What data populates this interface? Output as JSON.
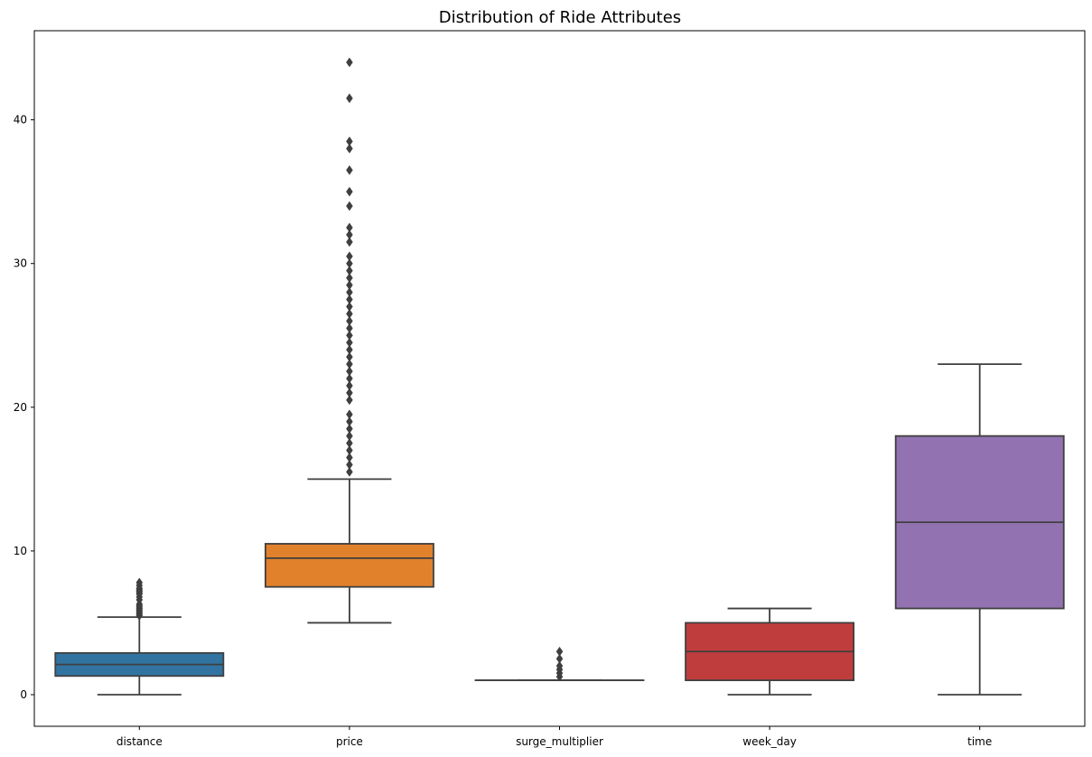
{
  "chart_data": {
    "type": "box",
    "title": "Distribution of Ride Attributes",
    "xlabel": "",
    "ylabel": "",
    "ylim": [
      -2.2,
      46.2
    ],
    "yticks": [
      0,
      10,
      20,
      30,
      40
    ],
    "grid": false,
    "legend": "none",
    "categories": [
      "distance",
      "price",
      "surge_multiplier",
      "week_day",
      "time"
    ],
    "boxes": [
      {
        "category": "distance",
        "color": "#3274a1",
        "q1": 1.3,
        "median": 2.1,
        "q3": 2.9,
        "whisker_low": 0.0,
        "whisker_high": 5.4,
        "outliers": [
          5.5,
          5.6,
          5.7,
          5.8,
          5.9,
          6.0,
          6.1,
          6.2,
          6.3,
          6.6,
          6.8,
          7.0,
          7.1,
          7.2,
          7.3,
          7.4,
          7.6,
          7.8
        ]
      },
      {
        "category": "price",
        "color": "#e1812c",
        "q1": 7.5,
        "median": 9.5,
        "q3": 10.5,
        "whisker_low": 5.0,
        "whisker_high": 15.0,
        "outliers": [
          15.5,
          16.0,
          16.5,
          17.0,
          17.5,
          18.0,
          18.5,
          19.0,
          19.5,
          20.5,
          21.0,
          21.5,
          22.0,
          22.5,
          23.0,
          23.5,
          24.0,
          24.5,
          25.0,
          25.5,
          26.0,
          26.5,
          27.0,
          27.5,
          28.0,
          28.5,
          29.0,
          29.5,
          30.0,
          30.5,
          31.5,
          32.0,
          32.5,
          34.0,
          35.0,
          36.5,
          38.0,
          38.5,
          41.5,
          44.0
        ]
      },
      {
        "category": "surge_multiplier",
        "color": "#3a923a",
        "q1": 1.0,
        "median": 1.0,
        "q3": 1.0,
        "whisker_low": 1.0,
        "whisker_high": 1.0,
        "outliers": [
          1.25,
          1.5,
          1.75,
          2.0,
          2.5,
          3.0
        ]
      },
      {
        "category": "week_day",
        "color": "#c03d3e",
        "q1": 1.0,
        "median": 3.0,
        "q3": 5.0,
        "whisker_low": 0.0,
        "whisker_high": 6.0,
        "outliers": []
      },
      {
        "category": "time",
        "color": "#9372b2",
        "q1": 6.0,
        "median": 12.0,
        "q3": 18.0,
        "whisker_low": 0.0,
        "whisker_high": 23.0,
        "outliers": []
      }
    ]
  }
}
